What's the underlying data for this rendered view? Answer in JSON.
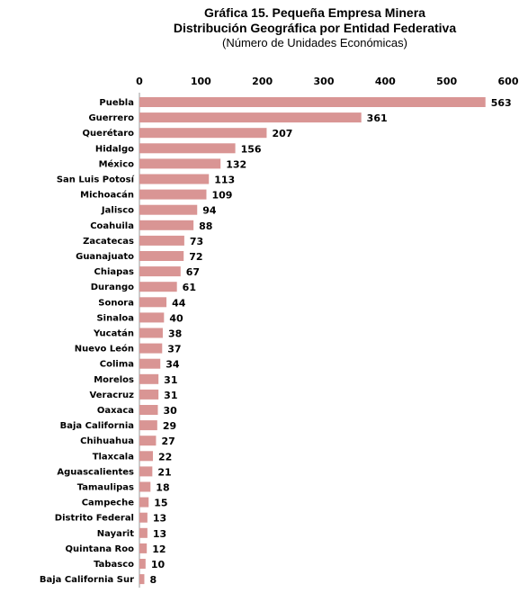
{
  "chart_data": {
    "type": "bar",
    "orientation": "horizontal",
    "title": "Gráfica 15. Pequeña Empresa Minera",
    "title_line2": "Distribución Geográfica por Entidad Federativa",
    "subtitle": "(Número de Unidades Económicas)",
    "xlim": [
      0,
      600
    ],
    "ticks": [
      "0",
      "100",
      "200",
      "300",
      "400",
      "500",
      "600"
    ],
    "bar_color": "#d99594",
    "grid": false,
    "legend": "none",
    "categories": [
      "Puebla",
      "Guerrero",
      "Querétaro",
      "Hidalgo",
      "México",
      "San Luis Potosí",
      "Michoacán",
      "Jalisco",
      "Coahuila",
      "Zacatecas",
      "Guanajuato",
      "Chiapas",
      "Durango",
      "Sonora",
      "Sinaloa",
      "Yucatán",
      "Nuevo León",
      "Colima",
      "Morelos",
      "Veracruz",
      "Oaxaca",
      "Baja California",
      "Chihuahua",
      "Tlaxcala",
      "Aguascalientes",
      "Tamaulipas",
      "Campeche",
      "Distrito Federal",
      "Nayarit",
      "Quintana Roo",
      "Tabasco",
      "Baja California Sur"
    ],
    "values": [
      563,
      361,
      207,
      156,
      132,
      113,
      109,
      94,
      88,
      73,
      72,
      67,
      61,
      44,
      40,
      38,
      37,
      34,
      31,
      31,
      30,
      29,
      27,
      22,
      21,
      18,
      15,
      13,
      13,
      12,
      10,
      8
    ]
  }
}
